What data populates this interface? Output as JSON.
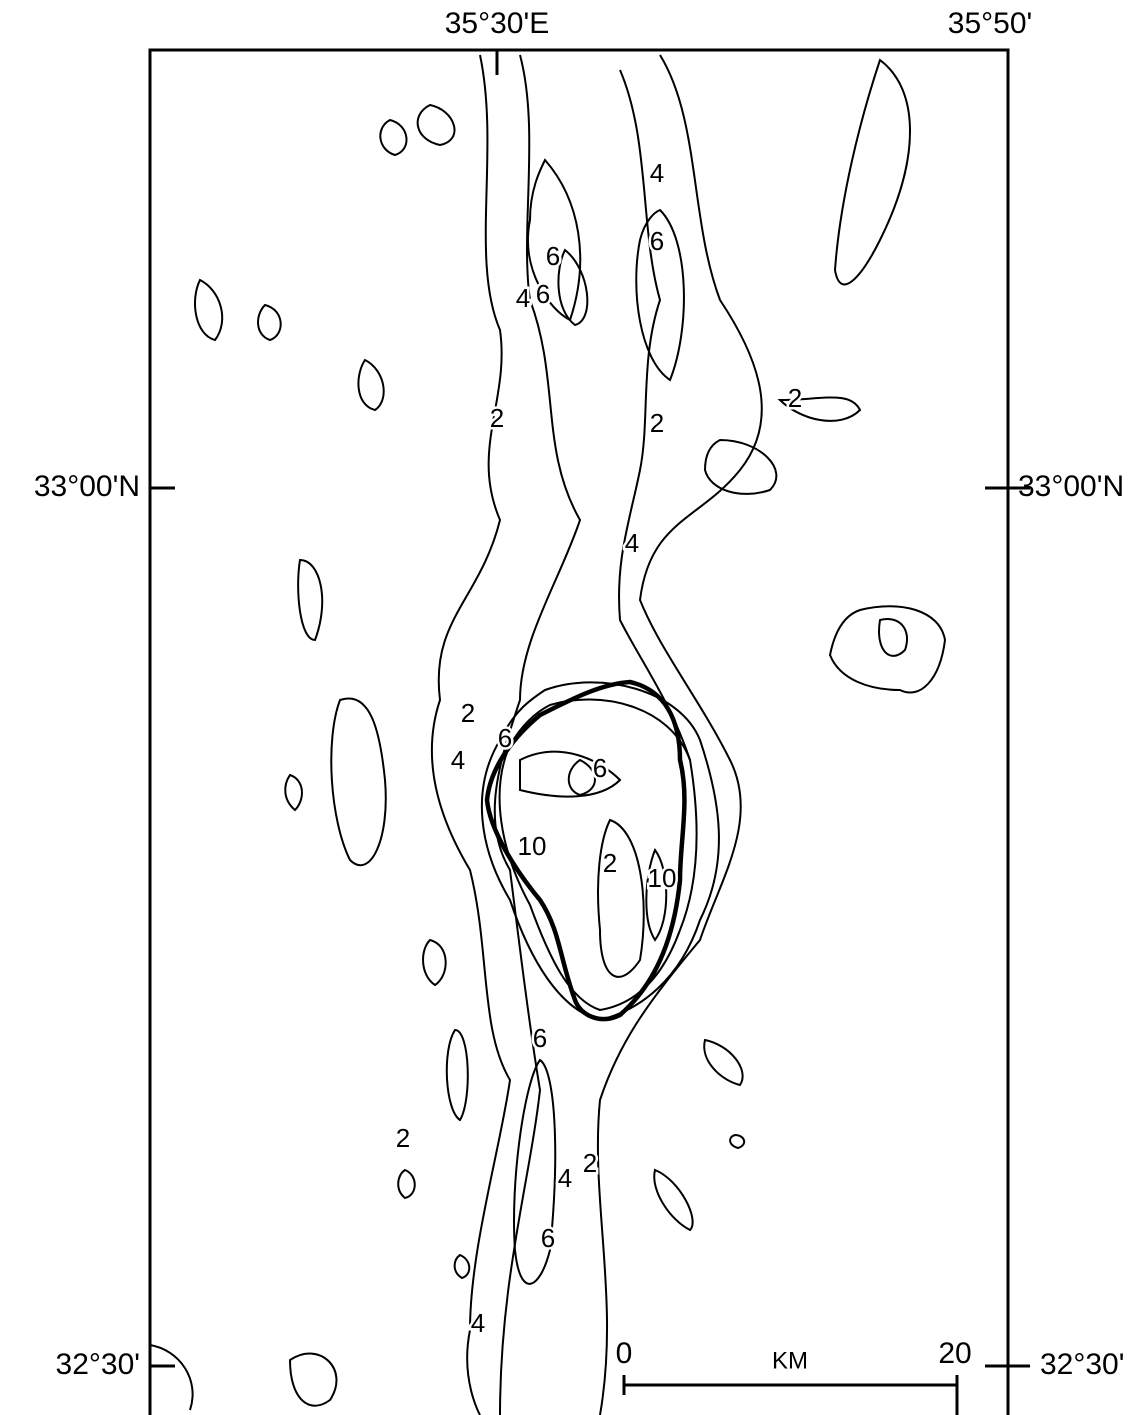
{
  "map": {
    "top_labels": [
      "35°30'E",
      "35°50'"
    ],
    "left_labels": [
      "33°00'N",
      "32°30'"
    ],
    "right_labels": [
      "33°00'N",
      "32°30'"
    ],
    "contour_labels": [
      "4",
      "6",
      "4",
      "6",
      "6",
      "2",
      "2",
      "2",
      "4",
      "2",
      "4",
      "6",
      "6",
      "10",
      "2",
      "10",
      "6",
      "2",
      "2",
      "4",
      "6",
      "4"
    ],
    "scale": {
      "start": "0",
      "unit": "KM",
      "end": "20"
    }
  }
}
